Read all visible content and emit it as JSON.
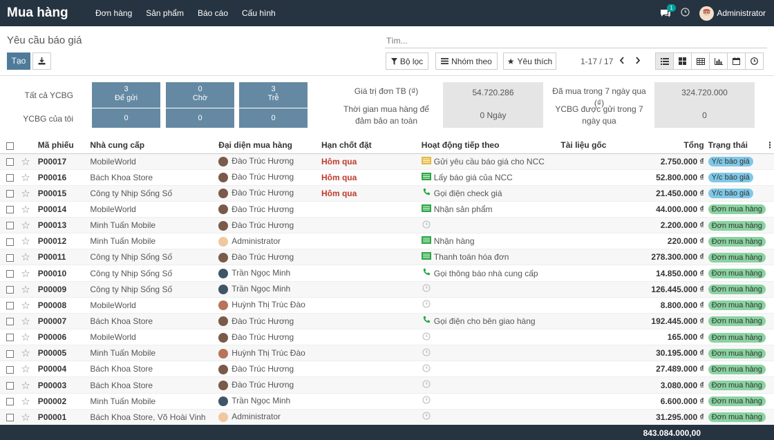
{
  "app": {
    "title": "Mua hàng"
  },
  "nav": {
    "orders": "Đơn hàng",
    "products": "Sản phẩm",
    "reports": "Báo cáo",
    "config": "Cấu hình"
  },
  "user": {
    "name": "Administrator",
    "chat_count": "1"
  },
  "breadcrumb": "Yêu cầu báo giá",
  "search": {
    "placeholder": "Tìm..."
  },
  "buttons": {
    "create": "Tạo",
    "filters": "Bộ lọc",
    "group_by": "Nhóm theo",
    "favorites": "Yêu thích"
  },
  "pager": "1-17 / 17",
  "dashboard": {
    "all_rfq": "Tất cả YCBG",
    "my_rfq": "YCBG của tôi",
    "tiles": [
      {
        "label": "Để gửi",
        "all": "3",
        "mine": "0"
      },
      {
        "label": "Chờ",
        "all": "0",
        "mine": "0"
      },
      {
        "label": "Trễ",
        "all": "3",
        "mine": "0"
      }
    ],
    "avg_order_label": "Giá trị đơn TB (₫)",
    "avg_order_value": "54.720.286",
    "lead_time_label": "Thời gian mua hàng để đảm bảo an toàn",
    "lead_time_value": "0  Ngày",
    "purchased_7d_label": "Đã mua trong 7 ngày qua (₫)",
    "purchased_7d_value": "324.720.000",
    "rfq_sent_7d_label": "YCBG được gửi trong 7 ngày qua",
    "rfq_sent_7d_value": "0"
  },
  "columns": {
    "ref": "Mã phiếu",
    "vendor": "Nhà cung cấp",
    "rep": "Đại diện mua hàng",
    "deadline": "Hạn chốt đặt",
    "activity": "Hoạt động tiếp theo",
    "source": "Tài liệu gốc",
    "total": "Tổng",
    "status": "Trạng thái"
  },
  "rows": [
    {
      "ref": "P00017",
      "vendor": "MobileWorld",
      "rep": "Đào Trúc Hương",
      "deadline": "Hôm qua",
      "activity": "Gửi yêu cầu báo giá cho NCC",
      "activity_icon": "email-icon",
      "total": "2.750.000 ₫",
      "status": "Y/c báo giá"
    },
    {
      "ref": "P00016",
      "vendor": "Bách Khoa Store",
      "rep": "Đào Trúc Hương",
      "deadline": "Hôm qua",
      "activity": "Lấy báo giá của NCC",
      "activity_icon": "todo-icon",
      "total": "52.800.000 ₫",
      "status": "Y/c báo giá"
    },
    {
      "ref": "P00015",
      "vendor": "Công ty Nhịp Sống Số",
      "rep": "Đào Trúc Hương",
      "deadline": "Hôm qua",
      "activity": "Gọi điện check giá",
      "activity_icon": "phone-icon",
      "total": "21.450.000 ₫",
      "status": "Y/c báo giá"
    },
    {
      "ref": "P00014",
      "vendor": "MobileWorld",
      "rep": "Đào Trúc Hương",
      "deadline": "",
      "activity": "Nhận sản phẩm",
      "activity_icon": "todo-icon",
      "total": "44.000.000 ₫",
      "status": "Đơn mua hàng"
    },
    {
      "ref": "P00013",
      "vendor": "Minh Tuấn Mobile",
      "rep": "Đào Trúc Hương",
      "deadline": "",
      "activity": "",
      "activity_icon": "clock-icon",
      "total": "2.200.000 ₫",
      "status": "Đơn mua hàng"
    },
    {
      "ref": "P00012",
      "vendor": "Minh Tuấn Mobile",
      "rep": "Administrator",
      "deadline": "",
      "activity": "Nhận hàng",
      "activity_icon": "todo-icon",
      "total": "220.000 ₫",
      "status": "Đơn mua hàng"
    },
    {
      "ref": "P00011",
      "vendor": "Công ty Nhịp Sống Số",
      "rep": "Đào Trúc Hương",
      "deadline": "",
      "activity": "Thanh toán hóa đơn",
      "activity_icon": "todo-icon",
      "total": "278.300.000 ₫",
      "status": "Đơn mua hàng"
    },
    {
      "ref": "P00010",
      "vendor": "Công ty Nhịp Sống Số",
      "rep": "Trần Ngọc Minh",
      "deadline": "",
      "activity": "Gọi thông báo nhà cung cấp",
      "activity_icon": "phone-icon",
      "total": "14.850.000 ₫",
      "status": "Đơn mua hàng"
    },
    {
      "ref": "P00009",
      "vendor": "Công ty Nhịp Sống Số",
      "rep": "Trần Ngọc Minh",
      "deadline": "",
      "activity": "",
      "activity_icon": "clock-icon",
      "total": "126.445.000 ₫",
      "status": "Đơn mua hàng"
    },
    {
      "ref": "P00008",
      "vendor": "MobileWorld",
      "rep": "Huỳnh Thị Trúc Đào",
      "deadline": "",
      "activity": "",
      "activity_icon": "clock-icon",
      "total": "8.800.000 ₫",
      "status": "Đơn mua hàng"
    },
    {
      "ref": "P00007",
      "vendor": "Bách Khoa Store",
      "rep": "Đào Trúc Hương",
      "deadline": "",
      "activity": "Gọi điện cho bên giao hàng",
      "activity_icon": "phone-icon",
      "total": "192.445.000 ₫",
      "status": "Đơn mua hàng"
    },
    {
      "ref": "P00006",
      "vendor": "MobileWorld",
      "rep": "Đào Trúc Hương",
      "deadline": "",
      "activity": "",
      "activity_icon": "clock-icon",
      "total": "165.000 ₫",
      "status": "Đơn mua hàng"
    },
    {
      "ref": "P00005",
      "vendor": "Minh Tuấn Mobile",
      "rep": "Huỳnh Thị Trúc Đào",
      "deadline": "",
      "activity": "",
      "activity_icon": "clock-icon",
      "total": "30.195.000 ₫",
      "status": "Đơn mua hàng"
    },
    {
      "ref": "P00004",
      "vendor": "Bách Khoa Store",
      "rep": "Đào Trúc Hương",
      "deadline": "",
      "activity": "",
      "activity_icon": "clock-icon",
      "total": "27.489.000 ₫",
      "status": "Đơn mua hàng"
    },
    {
      "ref": "P00003",
      "vendor": "Bách Khoa Store",
      "rep": "Đào Trúc Hương",
      "deadline": "",
      "activity": "",
      "activity_icon": "clock-icon",
      "total": "3.080.000 ₫",
      "status": "Đơn mua hàng"
    },
    {
      "ref": "P00002",
      "vendor": "Minh Tuấn Mobile",
      "rep": "Trần Ngọc Minh",
      "deadline": "",
      "activity": "",
      "activity_icon": "clock-icon",
      "total": "6.600.000 ₫",
      "status": "Đơn mua hàng"
    },
    {
      "ref": "P00001",
      "vendor": "Bách Khoa Store, Võ Hoài Vinh",
      "rep": "Administrator",
      "deadline": "",
      "activity": "",
      "activity_icon": "clock-icon",
      "total": "31.295.000 ₫",
      "status": "Đơn mua hàng"
    }
  ],
  "footer": {
    "total": "843.084.000,00"
  },
  "colors": {
    "topbar": "#263340",
    "tile": "#6589a3",
    "rfq_tag": "#7fc8e6",
    "po_tag": "#8ad3a0",
    "late": "#c0392b"
  }
}
